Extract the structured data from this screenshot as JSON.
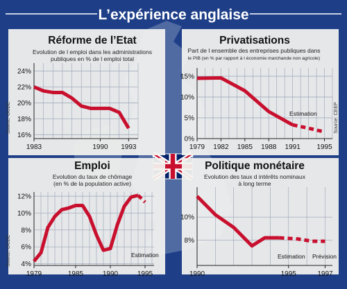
{
  "main_title": "L’expérience anglaise",
  "flag": "union-jack-flag",
  "colors": {
    "background": "#1e3f88",
    "panel": "#f4f4f0",
    "grid": "#9aa3b5",
    "line": "#c8102e",
    "map": "#8da0c4",
    "title_text": "#ffffff"
  },
  "chart_data": [
    {
      "id": "reforme",
      "type": "line",
      "title": "Réforme de l’Etat",
      "subtitle": [
        "Evolution de l emploi dans les administrations",
        "publiques en % de l emploi total"
      ],
      "source": "Source: OCDE",
      "x_ticks": [
        "1983",
        "1990",
        "1993"
      ],
      "x_tick_values": [
        1983,
        1990,
        1993
      ],
      "xlim": [
        1983,
        1994
      ],
      "y_ticks": [
        "16%",
        "18%",
        "20%",
        "22%",
        "24%"
      ],
      "y_tick_values": [
        16,
        18,
        20,
        22,
        24
      ],
      "ylim": [
        15.5,
        25
      ],
      "grid": true,
      "series": [
        {
          "style": "solid",
          "x": [
            1983,
            1984,
            1985,
            1986,
            1987,
            1988,
            1989,
            1990,
            1991,
            1992,
            1993
          ],
          "y": [
            22.0,
            21.5,
            21.3,
            21.3,
            20.6,
            19.6,
            19.3,
            19.3,
            19.3,
            18.8,
            16.8
          ]
        }
      ],
      "annotations": []
    },
    {
      "id": "privatisations",
      "type": "line",
      "title": "Privatisations",
      "subtitle": [
        "Part de l ensemble des entreprises publiques dans",
        "le PIB (en % par rapport à l économie marchande non agricole)"
      ],
      "source": "Source: CEEP",
      "x_ticks": [
        "1979",
        "1982",
        "1985",
        "1988",
        "1991",
        "1995"
      ],
      "x_tick_values": [
        1979,
        1982,
        1985,
        1988,
        1991,
        1995
      ],
      "xlim": [
        1979,
        1996
      ],
      "y_ticks": [
        "0%",
        "5%",
        "10%",
        "15%"
      ],
      "y_tick_values": [
        0,
        5,
        10,
        15
      ],
      "ylim": [
        0,
        17
      ],
      "grid": true,
      "series": [
        {
          "style": "solid",
          "x": [
            1979,
            1982,
            1985,
            1988,
            1991
          ],
          "y": [
            14.5,
            14.6,
            11.5,
            6.5,
            3.3
          ]
        },
        {
          "style": "dashed",
          "x": [
            1991,
            1993,
            1995
          ],
          "y": [
            3.3,
            2.5,
            1.6
          ]
        }
      ],
      "annotations": [
        {
          "text": "Estimation",
          "x": 1990.6,
          "y": 5.5
        }
      ]
    },
    {
      "id": "emploi",
      "type": "line",
      "title": "Emploi",
      "subtitle": [
        "Evolution du taux de chômage",
        "(en % de la population active)"
      ],
      "source": "Source: OCDE",
      "x_ticks": [
        "1979",
        "1985",
        "1990",
        "1995"
      ],
      "x_tick_values": [
        1979,
        1985,
        1990,
        1995
      ],
      "xlim": [
        1979,
        1996.3
      ],
      "y_ticks": [
        "4%",
        "6%",
        "8%",
        "10%",
        "12%"
      ],
      "y_tick_values": [
        4,
        6,
        8,
        10,
        12
      ],
      "ylim": [
        3.8,
        12.5
      ],
      "grid": true,
      "series": [
        {
          "style": "solid",
          "x": [
            1979,
            1980,
            1981,
            1982,
            1983,
            1984,
            1985,
            1986,
            1987,
            1988,
            1989,
            1990,
            1991,
            1992,
            1993,
            1994
          ],
          "y": [
            4.3,
            5.3,
            8.3,
            9.6,
            10.4,
            10.6,
            10.9,
            10.9,
            9.6,
            7.4,
            5.6,
            5.8,
            8.6,
            10.8,
            11.9,
            12.1
          ]
        },
        {
          "style": "dashed",
          "x": [
            1994,
            1995
          ],
          "y": [
            12.1,
            11.3
          ]
        }
      ],
      "annotations": [
        {
          "text": "Estimation",
          "x": 1993.0,
          "y": 4.8
        }
      ]
    },
    {
      "id": "politique",
      "type": "line",
      "title": "Politique monétaire",
      "subtitle": [
        "Evolution des taux d intérêts nominaux",
        "à long terme"
      ],
      "source": "",
      "x_ticks": [
        "1990",
        "1995",
        "1997"
      ],
      "x_tick_values": [
        1990,
        1995,
        1997
      ],
      "xlim": [
        1990,
        1997.4
      ],
      "y_ticks": [
        "8%",
        "10%"
      ],
      "y_tick_values": [
        8,
        10
      ],
      "ylim": [
        5.8,
        12.6
      ],
      "grid": true,
      "series": [
        {
          "style": "solid",
          "x": [
            1990,
            1991,
            1992,
            1993,
            1993.7,
            1994.5
          ],
          "y": [
            11.8,
            10.2,
            9.1,
            7.5,
            8.2,
            8.2
          ]
        },
        {
          "style": "dashed",
          "x": [
            1994.5,
            1995.5,
            1996.3,
            1997
          ],
          "y": [
            8.2,
            8.1,
            7.9,
            7.9
          ]
        }
      ],
      "annotations": [
        {
          "text": "Estimation",
          "x": 1994.4,
          "y": 6.4
        },
        {
          "text": "Prévision",
          "x": 1996.3,
          "y": 6.4
        }
      ]
    }
  ]
}
